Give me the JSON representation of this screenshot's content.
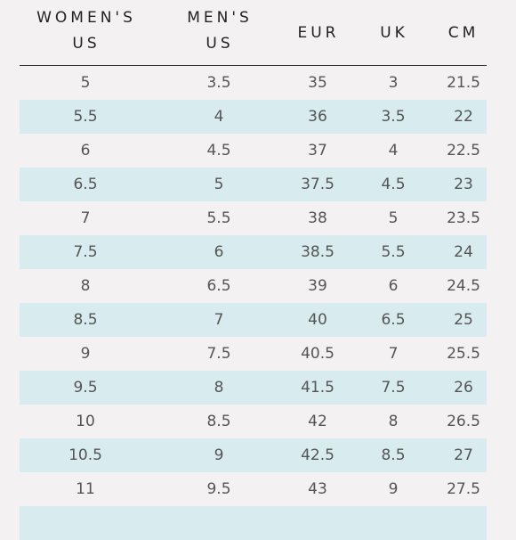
{
  "headers": [
    {
      "line1": "WOMEN'S",
      "line2": "US"
    },
    {
      "line1": "MEN'S",
      "line2": "US"
    },
    {
      "line1": "EUR",
      "line2": ""
    },
    {
      "line1": "UK",
      "line2": ""
    },
    {
      "line1": "CM",
      "line2": ""
    }
  ],
  "rows": [
    [
      "5",
      "3.5",
      "35",
      "3",
      "21.5"
    ],
    [
      "5.5",
      "4",
      "36",
      "3.5",
      "22"
    ],
    [
      "6",
      "4.5",
      "37",
      "4",
      "22.5"
    ],
    [
      "6.5",
      "5",
      "37.5",
      "4.5",
      "23"
    ],
    [
      "7",
      "5.5",
      "38",
      "5",
      "23.5"
    ],
    [
      "7.5",
      "6",
      "38.5",
      "5.5",
      "24"
    ],
    [
      "8",
      "6.5",
      "39",
      "6",
      "24.5"
    ],
    [
      "8.5",
      "7",
      "40",
      "6.5",
      "25"
    ],
    [
      "9",
      "7.5",
      "40.5",
      "7",
      "25.5"
    ],
    [
      "9.5",
      "8",
      "41.5",
      "7.5",
      "26"
    ],
    [
      "10",
      "8.5",
      "42",
      "8",
      "26.5"
    ],
    [
      "10.5",
      "9",
      "42.5",
      "8.5",
      "27"
    ],
    [
      "11",
      "9.5",
      "43",
      "9",
      "27.5"
    ],
    [
      "",
      "",
      "",
      "",
      ""
    ]
  ],
  "colors": {
    "background": "#f4f1f2",
    "shaded_row": "#d8ebee",
    "header_text": "#222222",
    "cell_text": "#555555",
    "rule": "#333333"
  }
}
